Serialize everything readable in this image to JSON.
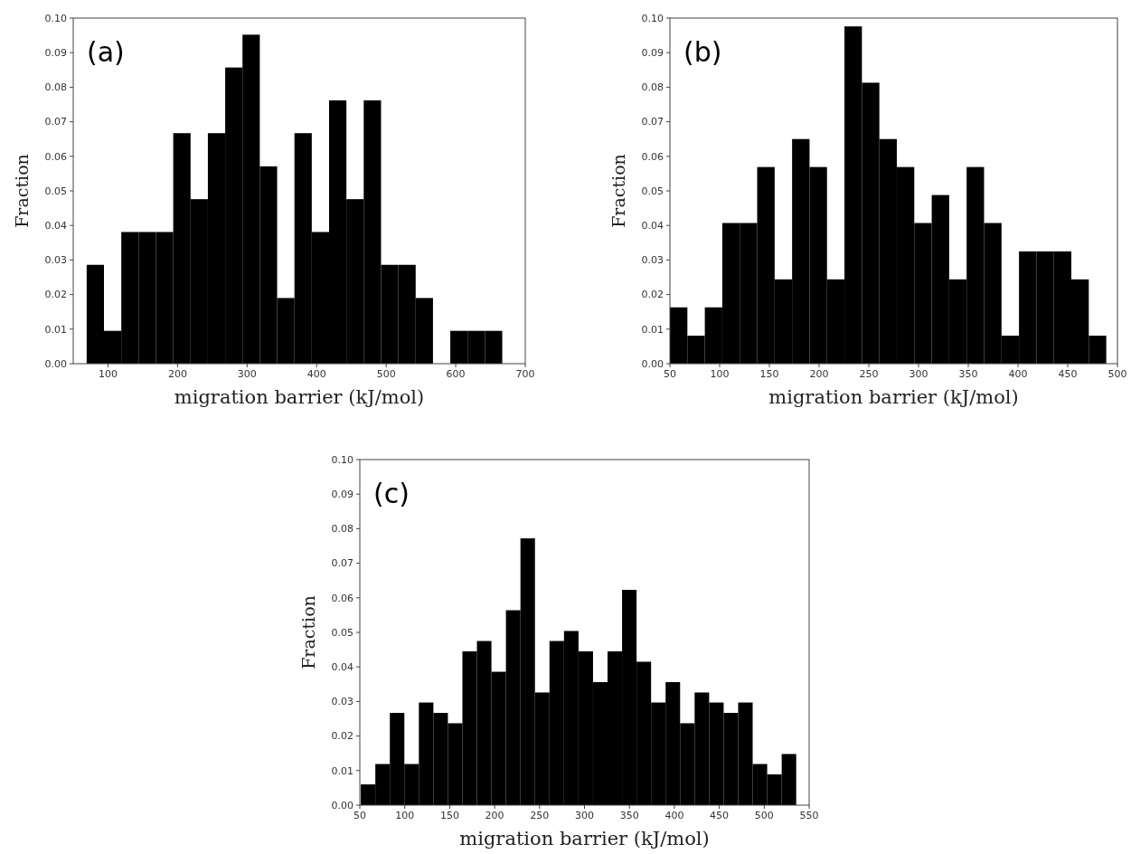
{
  "chart_data": [
    {
      "type": "histogram",
      "xlabel": "migration barrier (kJ/mol)",
      "ylabel": "Fraction",
      "annotations": [
        "(a)"
      ],
      "color": "#000000",
      "bins": [
        69.3,
        94.2,
        119.1,
        144.0,
        168.9,
        193.8,
        218.7,
        243.6,
        268.5,
        293.4,
        318.3,
        343.2,
        368.1,
        393.0,
        417.9,
        442.8,
        467.7,
        492.6,
        517.5,
        542.4,
        567.3,
        592.2,
        617.1,
        642.0,
        666.9
      ],
      "values": [
        0.0286,
        0.0095,
        0.0381,
        0.0381,
        0.0381,
        0.0667,
        0.0476,
        0.0667,
        0.0857,
        0.0952,
        0.0571,
        0.019,
        0.0667,
        0.0381,
        0.0762,
        0.0476,
        0.0762,
        0.0286,
        0.0286,
        0.019,
        0,
        0.0095,
        0.0095,
        0.0095
      ],
      "xlim": [
        50,
        700
      ],
      "xticks": [
        100,
        200,
        300,
        400,
        500,
        600,
        700
      ],
      "ylim": [
        0,
        0.1
      ],
      "yticks": [
        {
          "value": 0,
          "label": "0.00"
        },
        {
          "value": 0.01,
          "label": "0.01"
        },
        {
          "value": 0.02,
          "label": "0.02"
        },
        {
          "value": 0.03,
          "label": "0.03"
        },
        {
          "value": 0.04,
          "label": "0.04"
        },
        {
          "value": 0.05,
          "label": "0.05"
        },
        {
          "value": 0.06,
          "label": "0.06"
        },
        {
          "value": 0.07,
          "label": "0.07"
        },
        {
          "value": 0.08,
          "label": "0.08"
        },
        {
          "value": 0.09,
          "label": "0.09"
        },
        {
          "value": 0.1,
          "label": "0.10"
        }
      ]
    },
    {
      "type": "histogram",
      "xlabel": "migration barrier (kJ/mol)",
      "ylabel": "Fraction",
      "annotations": [
        "(b)"
      ],
      "color": "#000000",
      "bins": [
        50,
        67.55,
        85.1,
        102.65,
        120.2,
        137.75,
        155.3,
        172.85,
        190.4,
        207.95,
        225.5,
        243.05,
        260.6,
        278.15,
        295.7,
        313.25,
        330.8,
        348.35,
        365.9,
        383.45,
        401,
        418.55,
        436.1,
        453.65,
        471.2,
        488.75
      ],
      "values": [
        0.0163,
        0.0081,
        0.0163,
        0.0407,
        0.0407,
        0.0569,
        0.0244,
        0.065,
        0.0569,
        0.0244,
        0.0976,
        0.0813,
        0.065,
        0.0569,
        0.0407,
        0.0488,
        0.0244,
        0.0569,
        0.0407,
        0.0081,
        0.0325,
        0.0325,
        0.0325,
        0.0244,
        0.0081
      ],
      "xlim": [
        50,
        500
      ],
      "xticks": [
        50,
        100,
        150,
        200,
        250,
        300,
        350,
        400,
        450,
        500
      ],
      "ylim": [
        0,
        0.1
      ],
      "yticks": [
        {
          "value": 0,
          "label": "0.00"
        },
        {
          "value": 0.01,
          "label": "0.01"
        },
        {
          "value": 0.02,
          "label": "0.02"
        },
        {
          "value": 0.03,
          "label": "0.03"
        },
        {
          "value": 0.04,
          "label": "0.04"
        },
        {
          "value": 0.05,
          "label": "0.05"
        },
        {
          "value": 0.06,
          "label": "0.06"
        },
        {
          "value": 0.07,
          "label": "0.07"
        },
        {
          "value": 0.08,
          "label": "0.08"
        },
        {
          "value": 0.09,
          "label": "0.09"
        },
        {
          "value": 0.1,
          "label": "0.10"
        }
      ]
    },
    {
      "type": "histogram",
      "xlabel": "migration barrier (kJ/mol)",
      "ylabel": "Fraction",
      "annotations": [
        "(c)"
      ],
      "color": "#000000",
      "bins": [
        51.1,
        67.25,
        83.4,
        99.55,
        115.7,
        131.85,
        148,
        164.15,
        180.3,
        196.45,
        212.6,
        228.75,
        244.9,
        261.05,
        277.2,
        293.35,
        309.5,
        325.65,
        341.8,
        357.95,
        374.1,
        390.25,
        406.4,
        422.55,
        438.7,
        454.85,
        471,
        487.15,
        503.3,
        519.45,
        535.6
      ],
      "values": [
        0.006,
        0.0119,
        0.0267,
        0.0119,
        0.0297,
        0.0267,
        0.0237,
        0.0445,
        0.0475,
        0.0386,
        0.0564,
        0.0772,
        0.0326,
        0.0475,
        0.0504,
        0.0445,
        0.0356,
        0.0445,
        0.0623,
        0.0415,
        0.0297,
        0.0356,
        0.0237,
        0.0326,
        0.0297,
        0.0267,
        0.0297,
        0.0119,
        0.0089,
        0.0148
      ],
      "xlim": [
        50,
        550
      ],
      "xticks": [
        50,
        100,
        150,
        200,
        250,
        300,
        350,
        400,
        450,
        500,
        550
      ],
      "ylim": [
        0,
        0.1
      ],
      "yticks": [
        {
          "value": 0,
          "label": "0.00"
        },
        {
          "value": 0.01,
          "label": "0.01"
        },
        {
          "value": 0.02,
          "label": "0.02"
        },
        {
          "value": 0.03,
          "label": "0.03"
        },
        {
          "value": 0.04,
          "label": "0.04"
        },
        {
          "value": 0.05,
          "label": "0.05"
        },
        {
          "value": 0.06,
          "label": "0.06"
        },
        {
          "value": 0.07,
          "label": "0.07"
        },
        {
          "value": 0.08,
          "label": "0.08"
        },
        {
          "value": 0.09,
          "label": "0.09"
        },
        {
          "value": 0.1,
          "label": "0.10"
        }
      ]
    }
  ]
}
